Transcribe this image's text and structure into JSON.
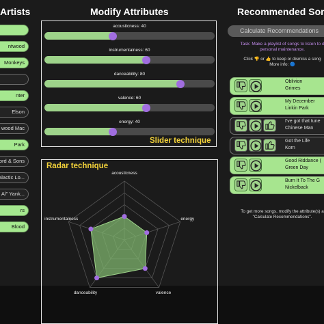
{
  "artists": {
    "title": "Artists",
    "items": [
      {
        "label": "",
        "selected": true
      },
      {
        "label": "ntwood",
        "selected": true
      },
      {
        "label": "Monkeys",
        "selected": true
      },
      {
        "label": "",
        "selected": false
      },
      {
        "label": "nter",
        "selected": true
      },
      {
        "label": "Elson",
        "selected": false
      },
      {
        "label": "wood Mac",
        "selected": false
      },
      {
        "label": "Park",
        "selected": true
      },
      {
        "label": "ord & Sons",
        "selected": false
      },
      {
        "label": "alactic Lo...",
        "selected": false
      },
      {
        "label": "d Al\" Yank...",
        "selected": false
      },
      {
        "label": "rs",
        "selected": true
      },
      {
        "label": "Blood",
        "selected": true
      }
    ]
  },
  "modify": {
    "title": "Modify Attributes",
    "technique_label": "Slider technique",
    "sliders": [
      {
        "label": "acousticness: 40",
        "value": 40
      },
      {
        "label": "instrumentalness: 60",
        "value": 60
      },
      {
        "label": "danceability: 80",
        "value": 80
      },
      {
        "label": "valence: 60",
        "value": 60
      },
      {
        "label": "energy: 40",
        "value": 40
      }
    ]
  },
  "radar": {
    "technique_label": "Radar  technique",
    "axes": [
      {
        "label": "acousticness",
        "value": 40
      },
      {
        "label": "energy",
        "value": 40
      },
      {
        "label": "valence",
        "value": 60
      },
      {
        "label": "danceability",
        "value": 80
      },
      {
        "label": "instrumentalness",
        "value": 60
      }
    ]
  },
  "recommended": {
    "title": "Recommended Song",
    "calc_button": "Calculate Recommendations",
    "task_line1": "Task: Make a playlist of songs to listen to d",
    "task_line2": "personal maintenance.",
    "click_line1": "Click 👎 or 👍 to keep or dismiss a song",
    "click_line2": "More info: 🔵",
    "songs": [
      {
        "title": "Oblivion",
        "artist": "Grimes",
        "liked": true
      },
      {
        "title": "My December",
        "artist": "Linkin Park",
        "liked": true
      },
      {
        "title": "I've got that tune",
        "artist": "Chinese Man",
        "liked": false
      },
      {
        "title": "Got the Life",
        "artist": "Korn",
        "liked": false
      },
      {
        "title": "Good Riddance (",
        "artist": "Green Day",
        "liked": true
      },
      {
        "title": "Burn It To The G",
        "artist": "Nickelback",
        "liked": true
      }
    ],
    "footer_line1": "To get more songs, modify the attribute(s) a",
    "footer_line2": "\"Calculate Recommendations\"."
  },
  "colors": {
    "accent_green": "#9ed38a",
    "knob_purple": "#a16ee0",
    "technique_yellow": "#f3d23a",
    "task_purple": "#c08be8"
  }
}
